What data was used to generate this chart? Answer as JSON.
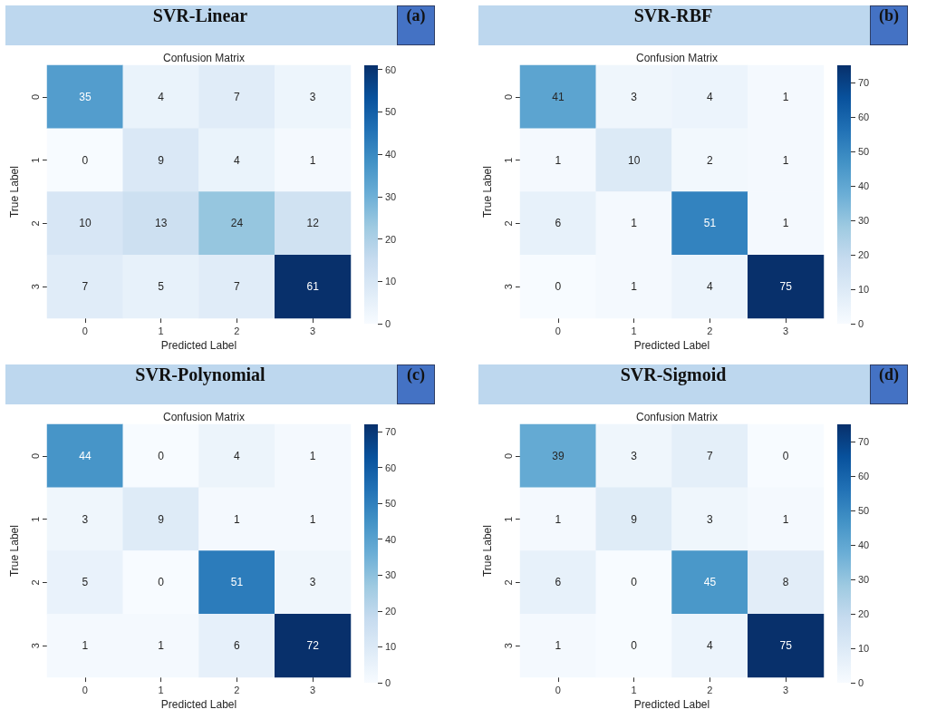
{
  "chart_data": [
    {
      "type": "heatmap",
      "title": "SVR-Linear",
      "subtitle": "Confusion Matrix",
      "xlabel": "Predicted Label",
      "ylabel": "True Label",
      "annotations": [
        "(a)"
      ],
      "categories": [
        "0",
        "1",
        "2",
        "3"
      ],
      "y_categories": [
        "0",
        "1",
        "2",
        "3"
      ],
      "cells": [
        [
          35,
          4,
          7,
          3
        ],
        [
          0,
          9,
          4,
          1
        ],
        [
          10,
          13,
          24,
          12
        ],
        [
          7,
          5,
          7,
          61
        ]
      ],
      "clim": [
        0,
        61
      ],
      "cticks": [
        0,
        10,
        20,
        30,
        40,
        50,
        60
      ],
      "data_labels": true
    },
    {
      "type": "heatmap",
      "title": "SVR-RBF",
      "subtitle": "Confusion Matrix",
      "xlabel": "Predicted Label",
      "ylabel": "True Label",
      "annotations": [
        "(b)"
      ],
      "categories": [
        "0",
        "1",
        "2",
        "3"
      ],
      "y_categories": [
        "0",
        "1",
        "2",
        "3"
      ],
      "cells": [
        [
          41,
          3,
          4,
          1
        ],
        [
          1,
          10,
          2,
          1
        ],
        [
          6,
          1,
          51,
          1
        ],
        [
          0,
          1,
          4,
          75
        ]
      ],
      "clim": [
        0,
        75
      ],
      "cticks": [
        0,
        10,
        20,
        30,
        40,
        50,
        60,
        70
      ],
      "data_labels": true
    },
    {
      "type": "heatmap",
      "title": "SVR-Polynomial",
      "subtitle": "Confusion Matrix",
      "xlabel": "Predicted Label",
      "ylabel": "True Label",
      "annotations": [
        "(c)"
      ],
      "categories": [
        "0",
        "1",
        "2",
        "3"
      ],
      "y_categories": [
        "0",
        "1",
        "2",
        "3"
      ],
      "cells": [
        [
          44,
          0,
          4,
          1
        ],
        [
          3,
          9,
          1,
          1
        ],
        [
          5,
          0,
          51,
          3
        ],
        [
          1,
          1,
          6,
          72
        ]
      ],
      "clim": [
        0,
        72
      ],
      "cticks": [
        0,
        10,
        20,
        30,
        40,
        50,
        60,
        70
      ],
      "data_labels": true
    },
    {
      "type": "heatmap",
      "title": "SVR-Sigmoid",
      "subtitle": "Confusion Matrix",
      "xlabel": "Predicted Label",
      "ylabel": "True Label",
      "annotations": [
        "(d)"
      ],
      "categories": [
        "0",
        "1",
        "2",
        "3"
      ],
      "y_categories": [
        "0",
        "1",
        "2",
        "3"
      ],
      "cells": [
        [
          39,
          3,
          7,
          0
        ],
        [
          1,
          9,
          3,
          1
        ],
        [
          6,
          0,
          45,
          8
        ],
        [
          1,
          0,
          4,
          75
        ]
      ],
      "clim": [
        0,
        75
      ],
      "cticks": [
        0,
        10,
        20,
        30,
        40,
        50,
        60,
        70
      ],
      "data_labels": true
    }
  ]
}
